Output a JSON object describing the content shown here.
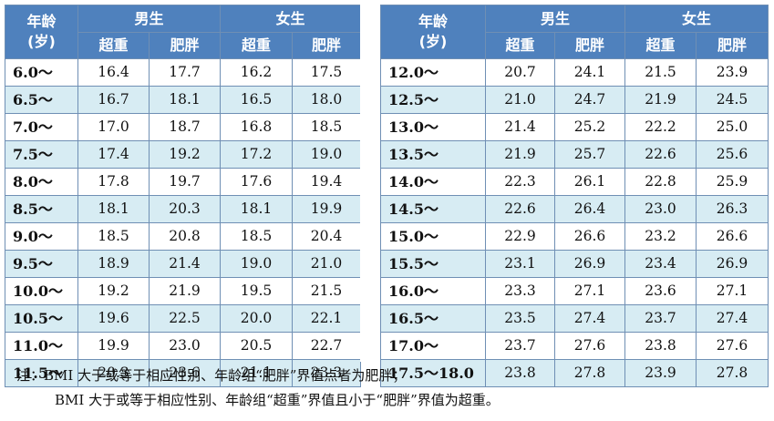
{
  "headers": {
    "age_line1": "年龄",
    "age_line2": "(岁)",
    "male": "男生",
    "female": "女生",
    "overweight": "超重",
    "obese": "肥胖"
  },
  "left_rows": [
    {
      "age": "6.0～",
      "m_over": "16.4",
      "m_obese": "17.7",
      "f_over": "16.2",
      "f_obese": "17.5"
    },
    {
      "age": "6.5～",
      "m_over": "16.7",
      "m_obese": "18.1",
      "f_over": "16.5",
      "f_obese": "18.0"
    },
    {
      "age": "7.0～",
      "m_over": "17.0",
      "m_obese": "18.7",
      "f_over": "16.8",
      "f_obese": "18.5"
    },
    {
      "age": "7.5～",
      "m_over": "17.4",
      "m_obese": "19.2",
      "f_over": "17.2",
      "f_obese": "19.0"
    },
    {
      "age": "8.0～",
      "m_over": "17.8",
      "m_obese": "19.7",
      "f_over": "17.6",
      "f_obese": "19.4"
    },
    {
      "age": "8.5～",
      "m_over": "18.1",
      "m_obese": "20.3",
      "f_over": "18.1",
      "f_obese": "19.9"
    },
    {
      "age": "9.0～",
      "m_over": "18.5",
      "m_obese": "20.8",
      "f_over": "18.5",
      "f_obese": "20.4"
    },
    {
      "age": "9.5～",
      "m_over": "18.9",
      "m_obese": "21.4",
      "f_over": "19.0",
      "f_obese": "21.0"
    },
    {
      "age": "10.0～",
      "m_over": "19.2",
      "m_obese": "21.9",
      "f_over": "19.5",
      "f_obese": "21.5"
    },
    {
      "age": "10.5～",
      "m_over": "19.6",
      "m_obese": "22.5",
      "f_over": "20.0",
      "f_obese": "22.1"
    },
    {
      "age": "11.0～",
      "m_over": "19.9",
      "m_obese": "23.0",
      "f_over": "20.5",
      "f_obese": "22.7"
    },
    {
      "age": "11.5～",
      "m_over": "20.3",
      "m_obese": "23.6",
      "f_over": "21.1",
      "f_obese": "23.3"
    }
  ],
  "right_rows": [
    {
      "age": "12.0～",
      "m_over": "20.7",
      "m_obese": "24.1",
      "f_over": "21.5",
      "f_obese": "23.9"
    },
    {
      "age": "12.5～",
      "m_over": "21.0",
      "m_obese": "24.7",
      "f_over": "21.9",
      "f_obese": "24.5"
    },
    {
      "age": "13.0～",
      "m_over": "21.4",
      "m_obese": "25.2",
      "f_over": "22.2",
      "f_obese": "25.0"
    },
    {
      "age": "13.5～",
      "m_over": "21.9",
      "m_obese": "25.7",
      "f_over": "22.6",
      "f_obese": "25.6"
    },
    {
      "age": "14.0～",
      "m_over": "22.3",
      "m_obese": "26.1",
      "f_over": "22.8",
      "f_obese": "25.9"
    },
    {
      "age": "14.5～",
      "m_over": "22.6",
      "m_obese": "26.4",
      "f_over": "23.0",
      "f_obese": "26.3"
    },
    {
      "age": "15.0～",
      "m_over": "22.9",
      "m_obese": "26.6",
      "f_over": "23.2",
      "f_obese": "26.6"
    },
    {
      "age": "15.5～",
      "m_over": "23.1",
      "m_obese": "26.9",
      "f_over": "23.4",
      "f_obese": "26.9"
    },
    {
      "age": "16.0～",
      "m_over": "23.3",
      "m_obese": "27.1",
      "f_over": "23.6",
      "f_obese": "27.1"
    },
    {
      "age": "16.5～",
      "m_over": "23.5",
      "m_obese": "27.4",
      "f_over": "23.7",
      "f_obese": "27.4"
    },
    {
      "age": "17.0～",
      "m_over": "23.7",
      "m_obese": "27.6",
      "f_over": "23.8",
      "f_obese": "27.6"
    },
    {
      "age": "17.5～18.0",
      "m_over": "23.8",
      "m_obese": "27.8",
      "f_over": "23.9",
      "f_obese": "27.8"
    }
  ],
  "notes": {
    "line1": "注：BMI 大于或等于相应性别、年龄组“肥胖”界值点者为肥胖；",
    "line2": "BMI 大于或等于相应性别、年龄组“超重”界值且小于“肥胖”界值为超重。"
  },
  "colors": {
    "header_bg": "#4f81bd",
    "stripe": "#d7ecf3",
    "border": "#6f8fb4"
  }
}
